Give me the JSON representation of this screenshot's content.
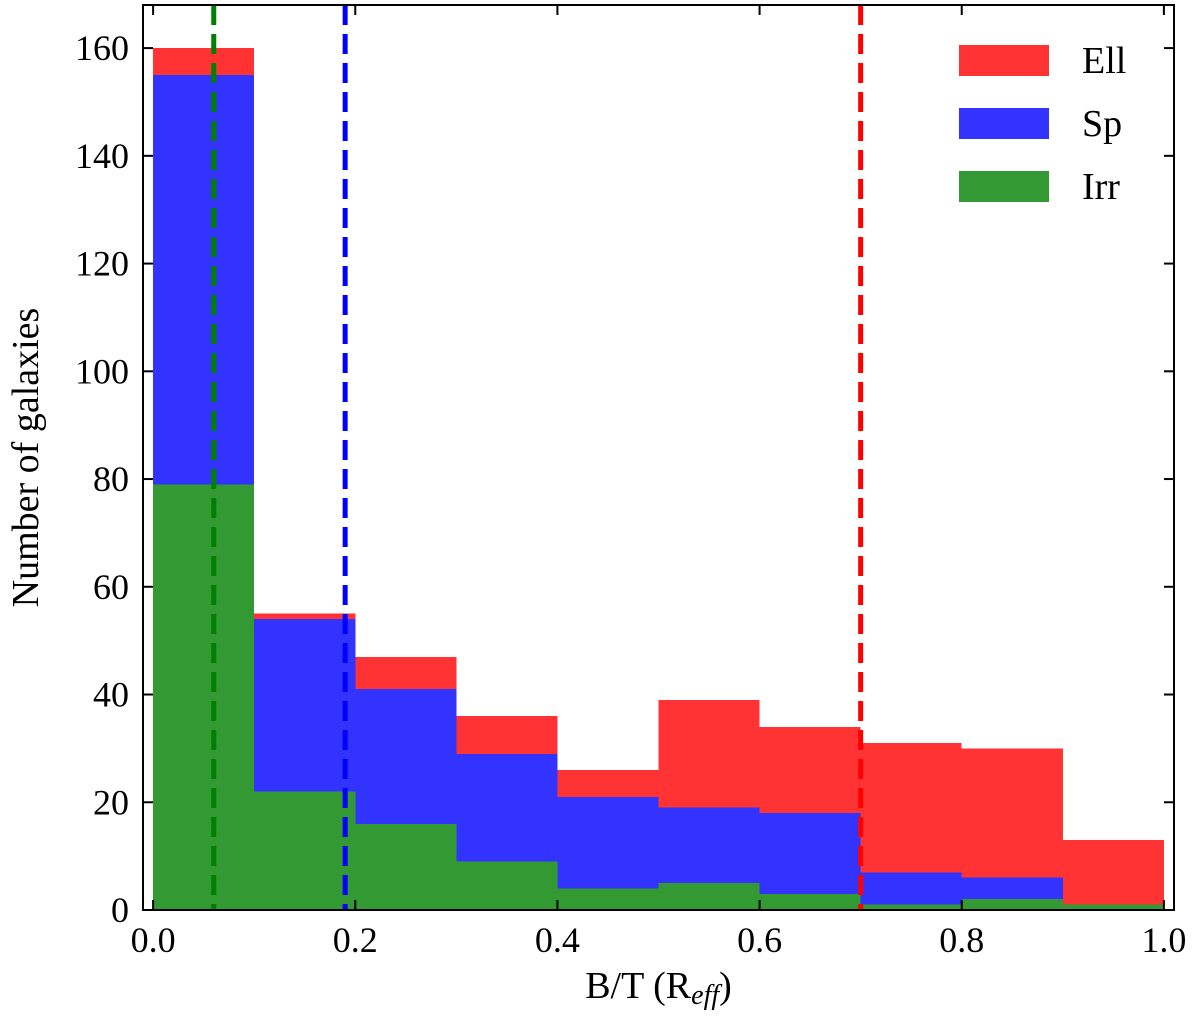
{
  "chart_data": {
    "type": "bar",
    "stacked": true,
    "bin_edges": [
      0.0,
      0.1,
      0.2,
      0.3,
      0.4,
      0.5,
      0.6,
      0.7,
      0.8,
      0.9,
      1.0
    ],
    "series": [
      {
        "name": "Irr",
        "color": "#339933",
        "values": [
          79,
          22,
          16,
          9,
          4,
          5,
          3,
          1,
          2,
          1
        ]
      },
      {
        "name": "Sp",
        "color": "#3333ff",
        "values": [
          76,
          32,
          25,
          20,
          17,
          14,
          15,
          6,
          4,
          0
        ]
      },
      {
        "name": "Ell",
        "color": "#ff3333",
        "values": [
          5,
          1,
          6,
          7,
          5,
          20,
          16,
          24,
          24,
          12
        ]
      }
    ],
    "reference_lines": [
      {
        "x": 0.06,
        "color": "#008000",
        "style": "dashed"
      },
      {
        "x": 0.19,
        "color": "#0000ff",
        "style": "dashed"
      },
      {
        "x": 0.7,
        "color": "#ff0000",
        "style": "dashed"
      }
    ],
    "xlabel_main": "B/T (R",
    "xlabel_sub": "eff",
    "xlabel_close": ")",
    "ylabel": "Number of galaxies",
    "xlim": [
      -0.01,
      1.01
    ],
    "ylim": [
      0,
      168
    ],
    "xticks": [
      0.0,
      0.2,
      0.4,
      0.6,
      0.8,
      1.0
    ],
    "xtick_labels": [
      "0.0",
      "0.2",
      "0.4",
      "0.6",
      "0.8",
      "1.0"
    ],
    "yticks": [
      0,
      20,
      40,
      60,
      80,
      100,
      120,
      140,
      160
    ],
    "ytick_labels": [
      "0",
      "20",
      "40",
      "60",
      "80",
      "100",
      "120",
      "140",
      "160"
    ],
    "legend_position": "top-right",
    "legend_order": [
      "Ell",
      "Sp",
      "Irr"
    ],
    "grid": false
  }
}
